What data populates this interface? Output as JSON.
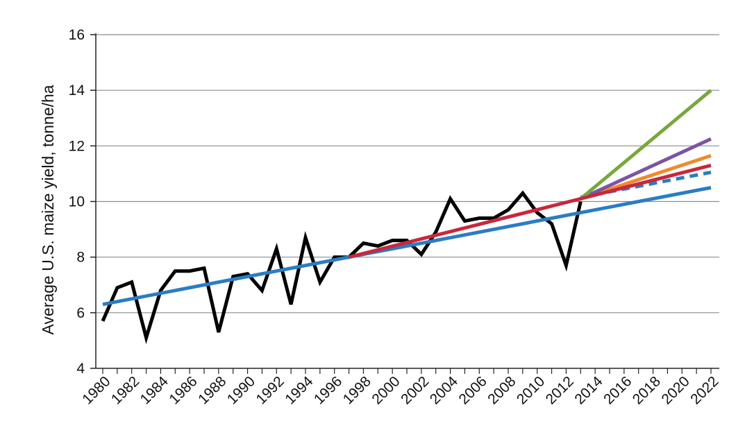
{
  "chart_data": {
    "type": "line",
    "title": "",
    "xlabel": "",
    "ylabel": "Average U.S. maize yield, tonne/ha",
    "xlim": [
      1980,
      2022
    ],
    "ylim": [
      4,
      16
    ],
    "grid": true,
    "x_tick_labels": [
      "1980",
      "1982",
      "1984",
      "1986",
      "1988",
      "1990",
      "1992",
      "1994",
      "1996",
      "1998",
      "2000",
      "2002",
      "2004",
      "2006",
      "2008",
      "2010",
      "2012",
      "2014",
      "2016",
      "2018",
      "2020",
      "2022"
    ],
    "y_tick_labels": [
      "4",
      "6",
      "8",
      "10",
      "12",
      "14",
      "16"
    ],
    "colors": {
      "observed": "#000000",
      "blue": "#2a7dc4",
      "red": "#c8283c",
      "orange": "#f08a2c",
      "purple": "#7b54a4",
      "green": "#78a83c",
      "grid": "#8c8c8c",
      "axis": "#222222"
    },
    "series": [
      {
        "color": "#000000",
        "dashed": false,
        "x": [
          1980,
          1981,
          1982,
          1983,
          1984,
          1985,
          1986,
          1987,
          1988,
          1989,
          1990,
          1991,
          1992,
          1993,
          1994,
          1995,
          1996,
          1997,
          1998,
          1999,
          2000,
          2001,
          2002,
          2003,
          2004,
          2005,
          2006,
          2007,
          2008,
          2009,
          2010,
          2011,
          2012,
          2013
        ],
        "y": [
          5.7,
          6.9,
          7.1,
          5.1,
          6.8,
          7.5,
          7.5,
          7.6,
          5.3,
          7.3,
          7.4,
          6.8,
          8.3,
          6.3,
          8.7,
          7.1,
          8.0,
          8.0,
          8.5,
          8.4,
          8.6,
          8.6,
          8.1,
          8.9,
          10.1,
          9.3,
          9.4,
          9.4,
          9.7,
          10.3,
          9.6,
          9.2,
          7.7,
          10.0
        ]
      },
      {
        "color": "#2a7dc4",
        "dashed": false,
        "x": [
          1980,
          2022
        ],
        "y": [
          6.3,
          10.5
        ]
      },
      {
        "color": "#2a7dc4",
        "dashed": true,
        "x": [
          2013,
          2022
        ],
        "y": [
          10.15,
          11.05
        ]
      },
      {
        "color": "#c8283c",
        "dashed": false,
        "x": [
          1997,
          2013,
          2022
        ],
        "y": [
          8.0,
          10.1,
          11.3
        ]
      },
      {
        "color": "#f08a2c",
        "dashed": false,
        "x": [
          2013,
          2022
        ],
        "y": [
          10.1,
          11.65
        ]
      },
      {
        "color": "#7b54a4",
        "dashed": false,
        "x": [
          2013,
          2022
        ],
        "y": [
          10.1,
          12.25
        ]
      },
      {
        "color": "#78a83c",
        "dashed": false,
        "x": [
          2013,
          2022
        ],
        "y": [
          10.1,
          14.0
        ]
      }
    ]
  }
}
